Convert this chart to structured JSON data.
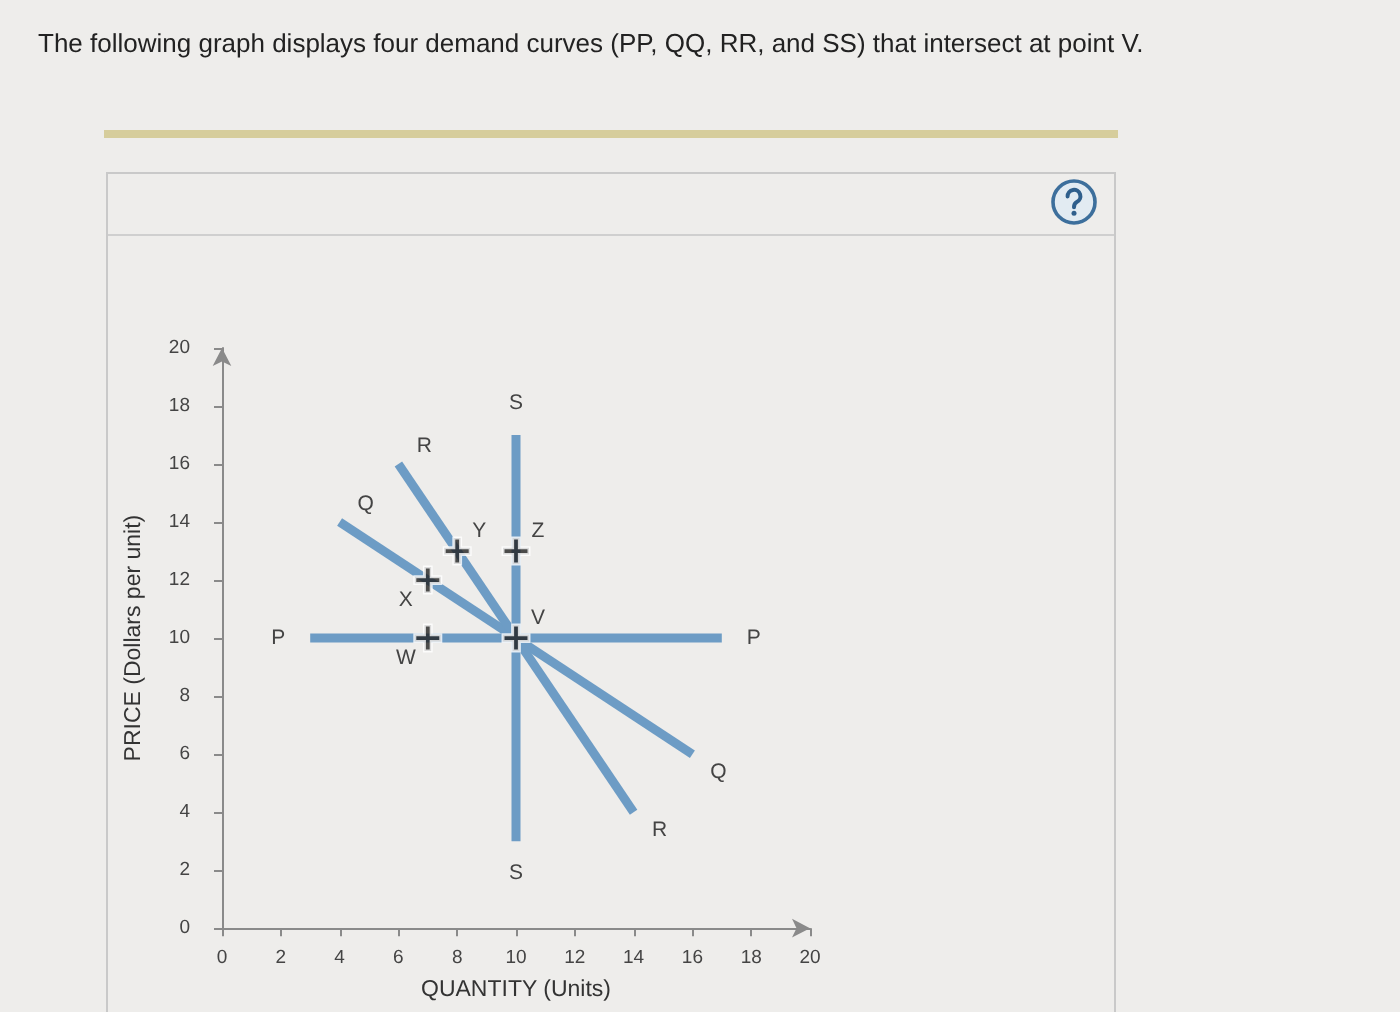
{
  "chart_data": {
    "type": "line",
    "title": "The following graph displays four demand curves (PP, QQ, RR, and SS) that intersect at point V.",
    "xlabel": "QUANTITY (Units)",
    "ylabel": "PRICE (Dollars per unit)",
    "xlim": [
      0,
      20
    ],
    "ylim": [
      0,
      20
    ],
    "xticks": [
      0,
      2,
      4,
      6,
      8,
      10,
      12,
      14,
      16,
      18,
      20
    ],
    "yticks": [
      0,
      2,
      4,
      6,
      8,
      10,
      12,
      14,
      16,
      18,
      20
    ],
    "grid": false,
    "legend": false,
    "marker": "none",
    "line_style": "solid",
    "series": [
      {
        "name": "P",
        "color": "#6d9cc5",
        "x": [
          3,
          17
        ],
        "values": [
          10,
          10
        ]
      },
      {
        "name": "Q",
        "color": "#6d9cc5",
        "x": [
          4,
          16
        ],
        "values": [
          14,
          6
        ]
      },
      {
        "name": "R",
        "color": "#6d9cc5",
        "x": [
          6,
          14
        ],
        "values": [
          16,
          4
        ]
      },
      {
        "name": "S",
        "color": "#6d9cc5",
        "x": [
          10,
          10
        ],
        "values": [
          17,
          3
        ]
      },
      {
        "type": "scatter",
        "marker": "cross",
        "color": "#222222",
        "x": [
          7,
          7,
          8,
          10,
          10
        ],
        "values": [
          10,
          12,
          13,
          13,
          10
        ]
      }
    ],
    "annotations": [
      {
        "text": "W",
        "x": 7,
        "y": 10
      },
      {
        "text": "X",
        "x": 7,
        "y": 12
      },
      {
        "text": "Y",
        "x": 8,
        "y": 13
      },
      {
        "text": "Z",
        "x": 10,
        "y": 13
      },
      {
        "text": "V",
        "x": 10,
        "y": 10
      }
    ]
  }
}
